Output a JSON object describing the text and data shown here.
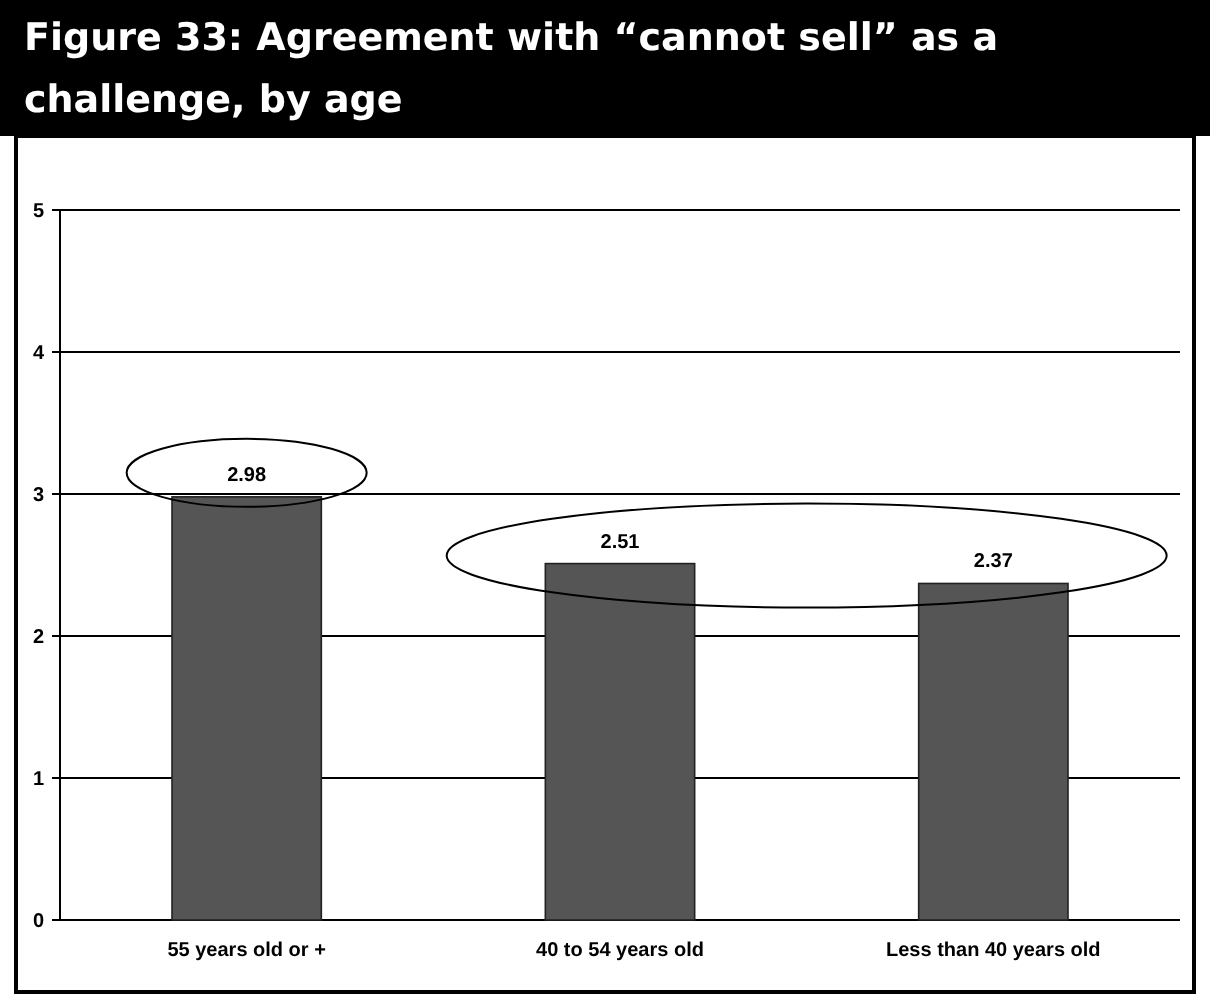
{
  "chart_data": {
    "type": "bar",
    "title": "Figure 33: Agreement with “cannot sell” as a challenge, by age",
    "categories": [
      "55 years old or +",
      "40 to 54 years old",
      "Less than 40 years old"
    ],
    "values": [
      2.98,
      2.51,
      2.37
    ],
    "color": "#555555",
    "ylim": [
      0,
      5
    ],
    "yticks": [
      0,
      1,
      2,
      3,
      4,
      5
    ],
    "grid": "y",
    "data_labels": true
  }
}
